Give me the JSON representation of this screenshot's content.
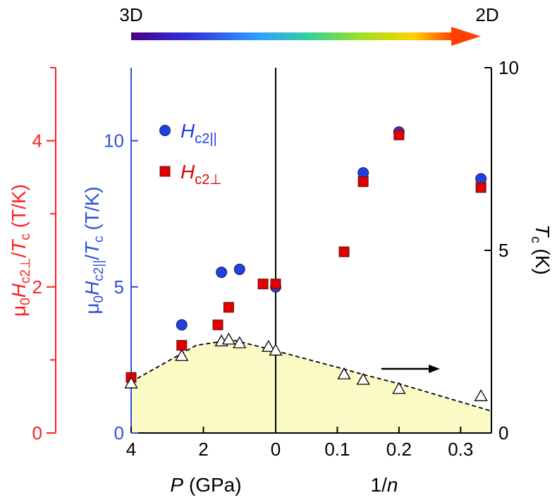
{
  "chart_data": {
    "type": "scatter",
    "arrow_bar": {
      "left_label": "3D",
      "right_label": "2D"
    },
    "panels": [
      {
        "name": "pressure",
        "xlabel_var": "P",
        "xlabel_unit": " (GPa)",
        "xlim": [
          4,
          0
        ],
        "xticks": [
          4,
          2,
          0
        ],
        "xtick_labels": [
          "4",
          "2",
          "0"
        ]
      },
      {
        "name": "inverse-n",
        "xlabel_num": "1/",
        "xlabel_var": "n",
        "xlim": [
          0,
          0.35
        ],
        "xticks": [
          0.1,
          0.2,
          0.3
        ],
        "xtick_labels": [
          "0.1",
          "0.2",
          "0.3"
        ]
      }
    ],
    "axes": {
      "left_red": {
        "label_prefix": "μ",
        "label_sub0": "0",
        "label_var": "H",
        "label_sub": "c2⊥",
        "label_div": "/",
        "label_var2": "T",
        "label_sub2": "c",
        "label_unit": " (T/K)",
        "ylim": [
          0,
          5
        ],
        "ticks": [
          0,
          2,
          4
        ],
        "tick_labels": [
          "0",
          "2",
          "4"
        ],
        "color": "#ff2020"
      },
      "left_blue": {
        "label_prefix": "μ",
        "label_sub0": "0",
        "label_var": "H",
        "label_sub": "c2||",
        "label_div": "/",
        "label_var2": "T",
        "label_sub2": "c",
        "label_unit": " (T/K)",
        "ylim": [
          0,
          12.5
        ],
        "ticks": [
          0,
          5,
          10
        ],
        "tick_labels": [
          "0",
          "5",
          "10"
        ],
        "color": "#3050e0"
      },
      "right": {
        "label_var": "T",
        "label_sub": "c",
        "label_unit": " (K)",
        "ylim": [
          0,
          10
        ],
        "ticks": [
          0,
          5,
          10
        ],
        "tick_labels": [
          "0",
          "5",
          "10"
        ],
        "color": "#000000"
      }
    },
    "legend": [
      {
        "var": "H",
        "sub": "c2||",
        "color": "#2040e0",
        "marker": "circle"
      },
      {
        "var": "H",
        "sub": "c2⊥",
        "color": "#e00000",
        "marker": "square"
      }
    ],
    "series": [
      {
        "name": "Hc2_parallel",
        "axis": "left_blue",
        "marker": "circle",
        "color": "#2040e0",
        "points": [
          {
            "panel": 0,
            "x": 2.6,
            "y": 3.7
          },
          {
            "panel": 0,
            "x": 1.5,
            "y": 5.5
          },
          {
            "panel": 0,
            "x": 1.0,
            "y": 5.6
          },
          {
            "panel": 1,
            "x": 0.0,
            "y": 5.0
          },
          {
            "panel": 1,
            "x": 0.142,
            "y": 8.9
          },
          {
            "panel": 1,
            "x": 0.2,
            "y": 10.3
          },
          {
            "panel": 1,
            "x": 0.333,
            "y": 8.7
          }
        ]
      },
      {
        "name": "Hc2_perp",
        "axis": "left_blue",
        "marker": "square",
        "color": "#e00000",
        "points": [
          {
            "panel": 0,
            "x": 4.0,
            "y": 1.9
          },
          {
            "panel": 0,
            "x": 2.6,
            "y": 3.0
          },
          {
            "panel": 0,
            "x": 1.6,
            "y": 3.7
          },
          {
            "panel": 0,
            "x": 1.3,
            "y": 4.3
          },
          {
            "panel": 0,
            "x": 0.35,
            "y": 5.1
          },
          {
            "panel": 1,
            "x": 0.0,
            "y": 5.1
          },
          {
            "panel": 1,
            "x": 0.111,
            "y": 6.2
          },
          {
            "panel": 1,
            "x": 0.142,
            "y": 8.6
          },
          {
            "panel": 1,
            "x": 0.2,
            "y": 10.2
          },
          {
            "panel": 1,
            "x": 0.333,
            "y": 8.4
          }
        ]
      },
      {
        "name": "Tc",
        "axis": "right",
        "marker": "triangle",
        "color": "#000000",
        "points": [
          {
            "panel": 0,
            "x": 4.0,
            "y": 1.35
          },
          {
            "panel": 0,
            "x": 2.6,
            "y": 2.1
          },
          {
            "panel": 0,
            "x": 1.5,
            "y": 2.5
          },
          {
            "panel": 0,
            "x": 1.3,
            "y": 2.55
          },
          {
            "panel": 0,
            "x": 1.0,
            "y": 2.45
          },
          {
            "panel": 0,
            "x": 0.2,
            "y": 2.35
          },
          {
            "panel": 1,
            "x": 0.0,
            "y": 2.25
          },
          {
            "panel": 1,
            "x": 0.111,
            "y": 1.6
          },
          {
            "panel": 1,
            "x": 0.142,
            "y": 1.45
          },
          {
            "panel": 1,
            "x": 0.2,
            "y": 1.2
          },
          {
            "panel": 1,
            "x": 0.333,
            "y": 1.0
          }
        ]
      }
    ],
    "tc_envelope": [
      {
        "panel": 0,
        "x": 4.0,
        "y": 1.4
      },
      {
        "panel": 0,
        "x": 2.2,
        "y": 2.4
      },
      {
        "panel": 0,
        "x": 1.2,
        "y": 2.55
      },
      {
        "panel": 0,
        "x": 0.0,
        "y": 2.25
      },
      {
        "panel": 1,
        "x": 0.111,
        "y": 1.75
      },
      {
        "panel": 1,
        "x": 0.142,
        "y": 1.6
      },
      {
        "panel": 1,
        "x": 0.2,
        "y": 1.35
      },
      {
        "panel": 1,
        "x": 0.35,
        "y": 0.6
      }
    ],
    "annotations": [
      {
        "type": "arrow",
        "direction": "right",
        "meaning": "Tc points refer to right axis"
      }
    ]
  }
}
